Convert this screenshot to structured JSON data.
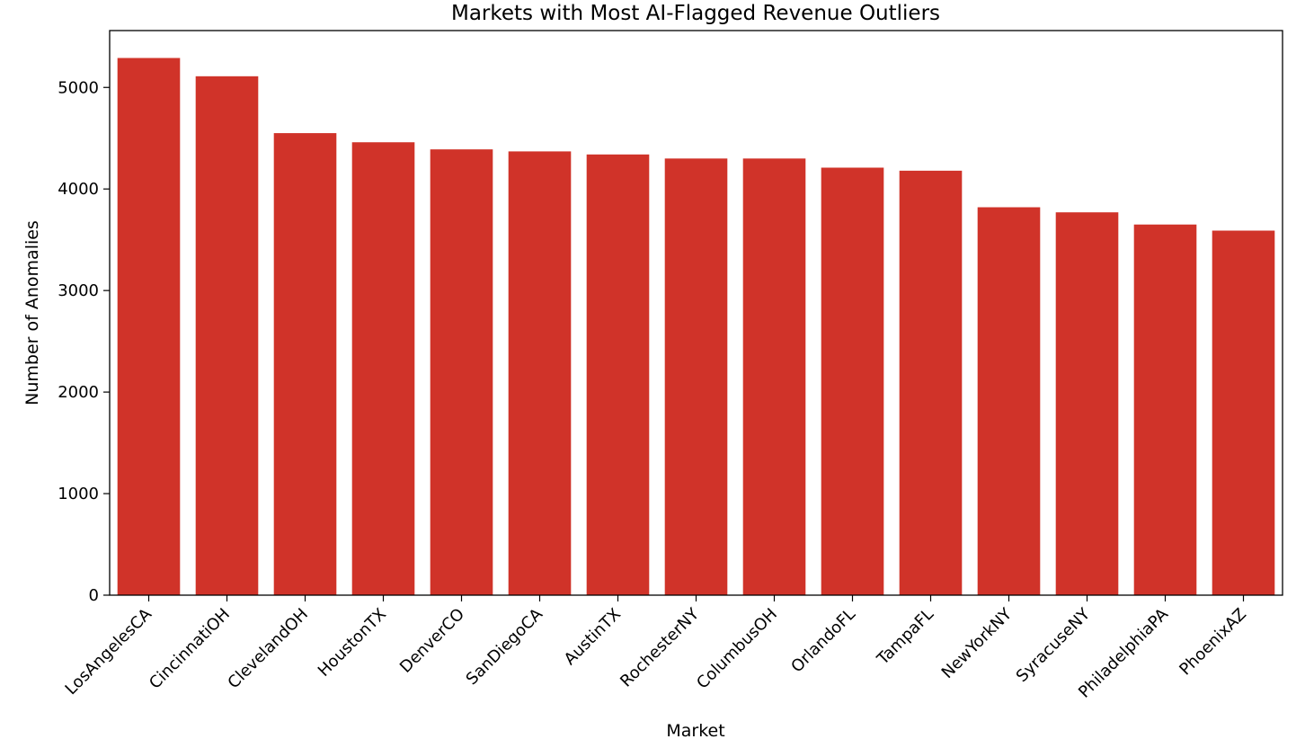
{
  "chart_data": {
    "type": "bar",
    "title": "Markets with Most AI-Flagged Revenue Outliers",
    "xlabel": "Market",
    "ylabel": "Number of Anomalies",
    "categories": [
      "LosAngelesCA",
      "CincinnatiOH",
      "ClevelandOH",
      "HoustonTX",
      "DenverCO",
      "SanDiegoCA",
      "AustinTX",
      "RochesterNY",
      "ColumbusOH",
      "OrlandoFL",
      "TampaFL",
      "NewYorkNY",
      "SyracuseNY",
      "PhiladelphiaPA",
      "PhoenixAZ"
    ],
    "values": [
      5290,
      5110,
      4550,
      4460,
      4390,
      4370,
      4340,
      4300,
      4300,
      4210,
      4180,
      3820,
      3770,
      3650,
      3590
    ],
    "ylim": [
      0,
      5560
    ],
    "yticks": [
      0,
      1000,
      2000,
      3000,
      4000,
      5000
    ],
    "bar_color": "#d03329",
    "grid": false,
    "legend": "none"
  }
}
